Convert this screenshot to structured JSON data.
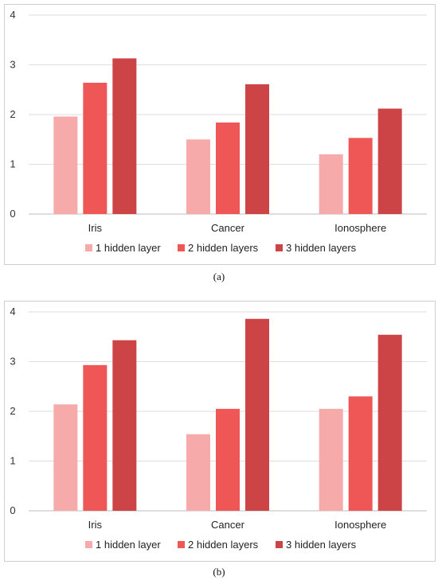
{
  "legend": [
    "1 hidden layer",
    "2 hidden layers",
    "3 hidden layers"
  ],
  "colors": [
    "#f6aaaa",
    "#ef5757",
    "#cc4446"
  ],
  "chart_data": [
    {
      "type": "bar",
      "caption": "(a)",
      "categories": [
        "Iris",
        "Cancer",
        "Ionosphere"
      ],
      "series": [
        {
          "name": "1 hidden layer",
          "values": [
            1.96,
            1.5,
            1.2
          ]
        },
        {
          "name": "2 hidden layers",
          "values": [
            2.64,
            1.84,
            1.53
          ]
        },
        {
          "name": "3 hidden layers",
          "values": [
            3.13,
            2.61,
            2.12
          ]
        }
      ],
      "yticks": [
        "0",
        "1",
        "2",
        "3",
        "4"
      ],
      "ylim": [
        0,
        4
      ],
      "grid": true,
      "legend_position": "bottom"
    },
    {
      "type": "bar",
      "caption": "(b)",
      "categories": [
        "Iris",
        "Cancer",
        "Ionosphere"
      ],
      "series": [
        {
          "name": "1 hidden layer",
          "values": [
            2.14,
            1.54,
            2.05
          ]
        },
        {
          "name": "2 hidden layers",
          "values": [
            2.93,
            2.05,
            2.3
          ]
        },
        {
          "name": "3 hidden layers",
          "values": [
            3.43,
            3.86,
            3.54
          ]
        }
      ],
      "yticks": [
        "0",
        "1",
        "2",
        "3",
        "4"
      ],
      "ylim": [
        0,
        4
      ],
      "grid": true,
      "legend_position": "bottom"
    }
  ]
}
